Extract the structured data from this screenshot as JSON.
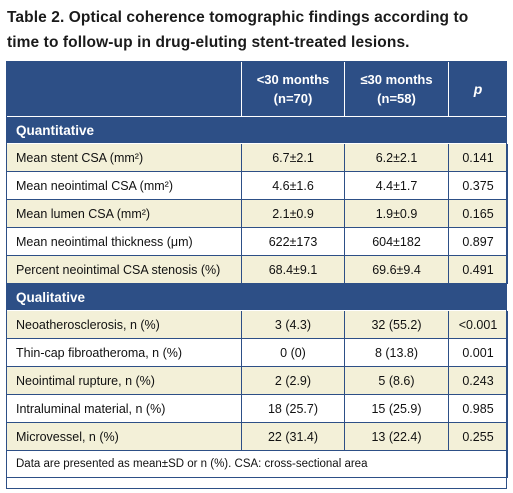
{
  "title": {
    "line1": "Table 2. Optical coherence tomographic findings according to",
    "line2": "time to follow-up in drug-eluting stent-treated lesions."
  },
  "colors": {
    "header_bg": "#2d4f86",
    "row_tint": "#f3f0d8",
    "header_text": "#ffffff"
  },
  "table": {
    "headers": {
      "col1_line1": "<30 months",
      "col1_line2": "(n=70)",
      "col2_line1": "≤30 months",
      "col2_line2": "(n=58)",
      "p": "p"
    },
    "sections": [
      {
        "label": "Quantitative",
        "rows": [
          {
            "label": "Mean stent CSA (mm²)",
            "a": "6.7±2.1",
            "b": "6.2±2.1",
            "p": "0.141"
          },
          {
            "label": "Mean neointimal CSA (mm²)",
            "a": "4.6±1.6",
            "b": "4.4±1.7",
            "p": "0.375"
          },
          {
            "label": "Mean lumen CSA (mm²)",
            "a": "2.1±0.9",
            "b": "1.9±0.9",
            "p": "0.165"
          },
          {
            "label": "Mean neointimal thickness (μm)",
            "a": "622±173",
            "b": "604±182",
            "p": "0.897"
          },
          {
            "label": "Percent neointimal CSA stenosis (%)",
            "a": "68.4±9.1",
            "b": "69.6±9.4",
            "p": "0.491"
          }
        ]
      },
      {
        "label": "Qualitative",
        "rows": [
          {
            "label": "Neoatherosclerosis, n (%)",
            "a": "3 (4.3)",
            "b": "32 (55.2)",
            "p": "<0.001"
          },
          {
            "label": "Thin-cap fibroatheroma, n (%)",
            "a": "0 (0)",
            "b": "8 (13.8)",
            "p": "0.001"
          },
          {
            "label": "Neointimal rupture, n (%)",
            "a": "2 (2.9)",
            "b": "5 (8.6)",
            "p": "0.243"
          },
          {
            "label": "Intraluminal material, n (%)",
            "a": "18 (25.7)",
            "b": "15 (25.9)",
            "p": "0.985"
          },
          {
            "label": "Microvessel, n (%)",
            "a": "22 (31.4)",
            "b": "13 (22.4)",
            "p": "0.255"
          }
        ]
      }
    ],
    "footnote": "Data are presented as mean±SD or n (%). CSA: cross-sectional area"
  }
}
